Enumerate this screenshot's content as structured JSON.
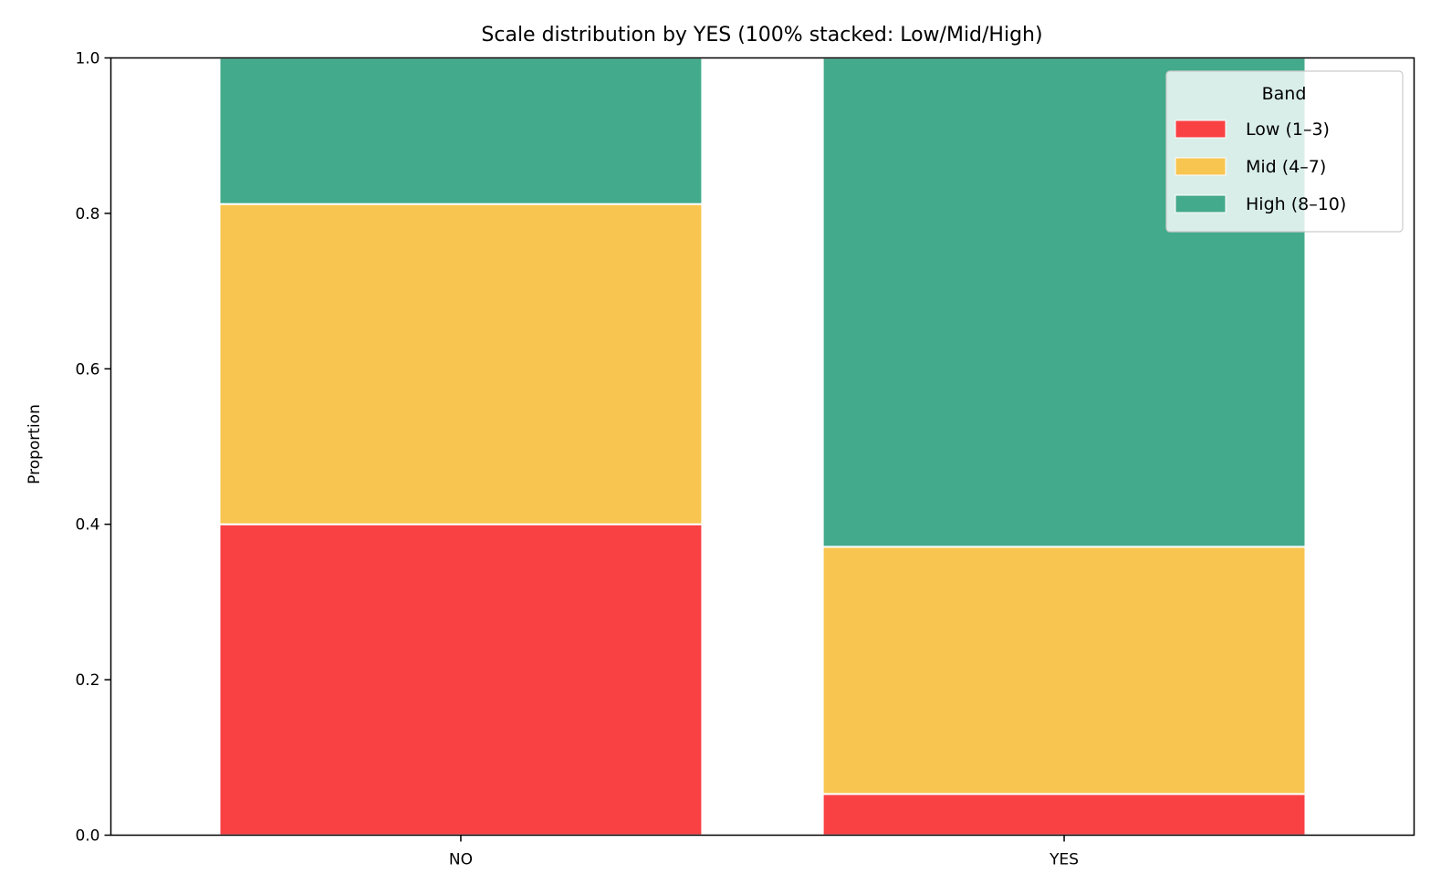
{
  "chart_data": {
    "type": "bar",
    "stacked": true,
    "normalized": true,
    "title": "Scale distribution by YES (100% stacked: Low/Mid/High)",
    "xlabel": "",
    "ylabel": "Proportion",
    "categories": [
      "NO",
      "YES"
    ],
    "ylim": [
      0,
      1.0
    ],
    "yticks": [
      0.0,
      0.2,
      0.4,
      0.6,
      0.8,
      1.0
    ],
    "ytick_labels": [
      "0.0",
      "0.2",
      "0.4",
      "0.6",
      "0.8",
      "1.0"
    ],
    "series": [
      {
        "name": "Low (1–3)",
        "color": "#f94144",
        "values": [
          0.4,
          0.053
        ]
      },
      {
        "name": "Mid (4–7)",
        "color": "#f8c550",
        "values": [
          0.412,
          0.318
        ]
      },
      {
        "name": "High (8–10)",
        "color": "#43aa8b",
        "values": [
          0.188,
          0.629
        ]
      }
    ],
    "legend": {
      "title": "Band",
      "placement": "top-right"
    },
    "grid": false
  }
}
